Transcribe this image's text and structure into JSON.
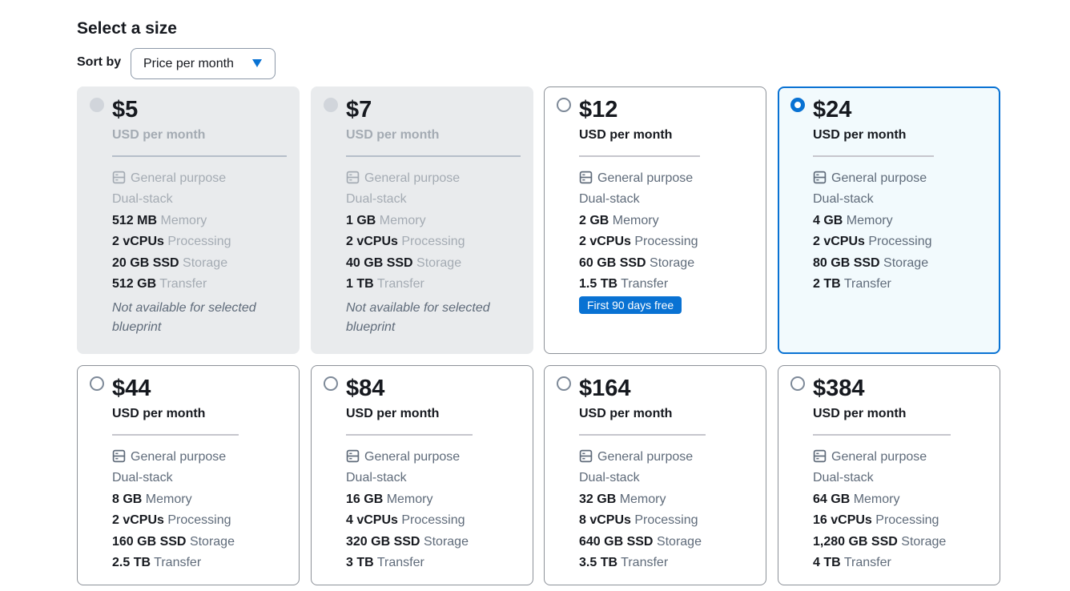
{
  "page": {
    "title": "Select a size"
  },
  "sort": {
    "label": "Sort by",
    "value": "Price per month"
  },
  "common": {
    "general": "General purpose",
    "dual": "Dual-stack",
    "memory": "Memory",
    "processing": "Processing",
    "storage": "Storage",
    "transfer": "Transfer",
    "period": "USD per month",
    "unavailable": "Not available for selected blueprint",
    "icon": "server-icon",
    "accent": "#0972d3"
  },
  "plans": [
    {
      "price": "$5",
      "memory": "512 MB",
      "cpus": "2 vCPUs",
      "storage": "20 GB SSD",
      "transfer": "512 GB",
      "state": "disabled"
    },
    {
      "price": "$7",
      "memory": "1 GB",
      "cpus": "2 vCPUs",
      "storage": "40 GB SSD",
      "transfer": "1 TB",
      "state": "disabled"
    },
    {
      "price": "$12",
      "memory": "2 GB",
      "cpus": "2 vCPUs",
      "storage": "60 GB SSD",
      "transfer": "1.5 TB",
      "state": "enabled",
      "badge": "First 90 days free"
    },
    {
      "price": "$24",
      "memory": "4 GB",
      "cpus": "2 vCPUs",
      "storage": "80 GB SSD",
      "transfer": "2 TB",
      "state": "selected"
    },
    {
      "price": "$44",
      "memory": "8 GB",
      "cpus": "2 vCPUs",
      "storage": "160 GB SSD",
      "transfer": "2.5 TB",
      "state": "enabled"
    },
    {
      "price": "$84",
      "memory": "16 GB",
      "cpus": "4 vCPUs",
      "storage": "320 GB SSD",
      "transfer": "3 TB",
      "state": "enabled"
    },
    {
      "price": "$164",
      "memory": "32 GB",
      "cpus": "8 vCPUs",
      "storage": "640 GB SSD",
      "transfer": "3.5 TB",
      "state": "enabled"
    },
    {
      "price": "$384",
      "memory": "64 GB",
      "cpus": "16 vCPUs",
      "storage": "1,280 GB SSD",
      "transfer": "4 TB",
      "state": "enabled"
    }
  ]
}
